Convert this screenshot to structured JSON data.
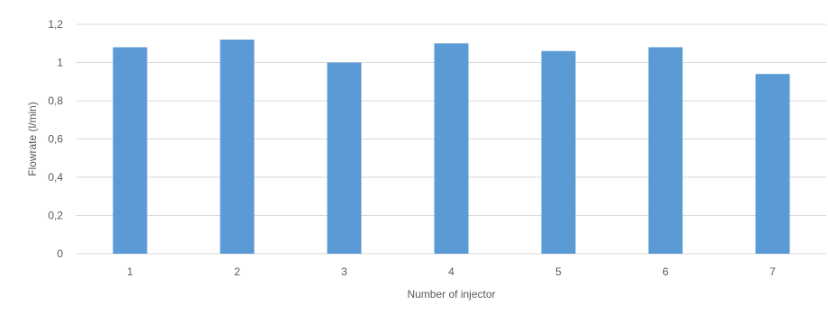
{
  "chart_data": {
    "type": "bar",
    "title": "",
    "xlabel": "Number of injector",
    "ylabel": "Flowrate (l/min)",
    "categories": [
      "1",
      "2",
      "3",
      "4",
      "5",
      "6",
      "7"
    ],
    "values": [
      1.08,
      1.12,
      1.0,
      1.1,
      1.06,
      1.08,
      0.94
    ],
    "ylim": [
      0,
      1.2
    ],
    "yticks": [
      0,
      0.2,
      0.4,
      0.6,
      0.8,
      1,
      1.2
    ],
    "ytick_labels": [
      "0",
      "0,2",
      "0,4",
      "0,6",
      "0,8",
      "1",
      "1,2"
    ],
    "grid": true,
    "legend": "none",
    "bar_color": "#5b9bd5",
    "grid_color": "#d9d9d9",
    "text_color": "#595959"
  }
}
